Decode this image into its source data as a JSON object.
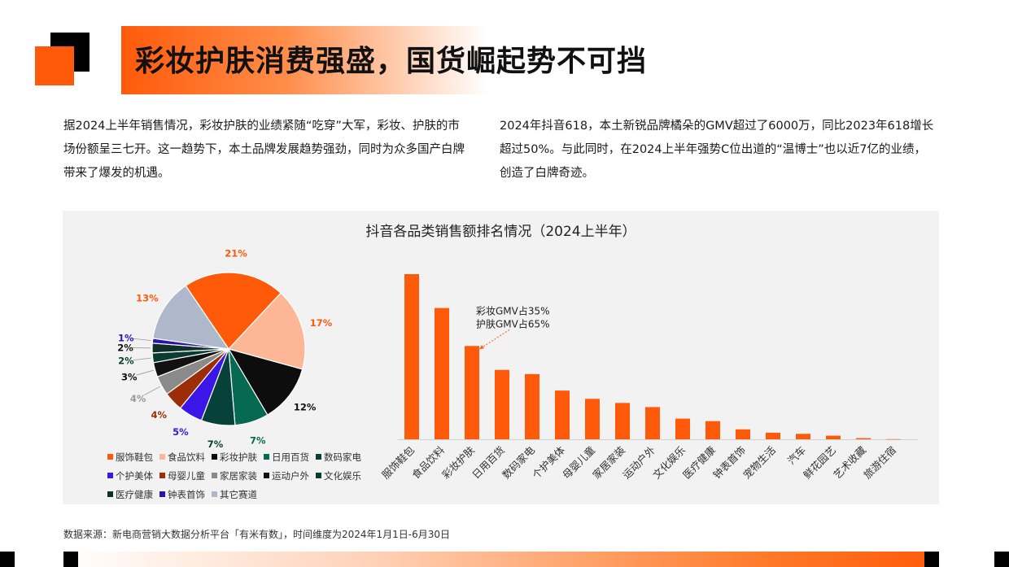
{
  "header": {
    "title": "彩妆护肤消费强盛，国货崛起势不可挡"
  },
  "paragraphs": {
    "left": "据2024上半年销售情况，彩妆护肤的业绩紧随“吃穿”大军，彩妆、护肤的市场份额呈三七开。这一趋势下，本土品牌发展趋势强劲，同时为众多国产白牌带来了爆发的机遇。",
    "right": "2024年抖音618，本土新锐品牌橘朵的GMV超过了6000万，同比2023年618增长超过50%。与此同时，在2024上半年强势C位出道的“温博士”也以近7亿的业绩，创造了白牌奇迹。"
  },
  "source": "数据来源：新电商营销大数据分析平台「有米有数」，时间维度为2024年1月1日-6月30日",
  "colors": {
    "accent": "#ff5a0a"
  },
  "chart_data": [
    {
      "type": "pie",
      "title": "抖音各品类销售额排名情况（2024上半年）",
      "legend_position": "bottom",
      "slices": [
        {
          "name": "服饰鞋包",
          "value": 21,
          "label": "21%",
          "color": "#ff5a0a",
          "label_color": "#ff5a0a"
        },
        {
          "name": "食品饮料",
          "value": 17,
          "label": "17%",
          "color": "#fdb797",
          "label_color": "#ff5a0a"
        },
        {
          "name": "彩妆护肤",
          "value": 12,
          "label": "12%",
          "color": "#0d0d0d",
          "label_color": "#111111"
        },
        {
          "name": "日用百货",
          "value": 7,
          "label": "7%",
          "color": "#066a52",
          "label_color": "#066a52"
        },
        {
          "name": "数码家电",
          "value": 7,
          "label": "7%",
          "color": "#06423a",
          "label_color": "#06423a"
        },
        {
          "name": "个护美体",
          "value": 5,
          "label": "5%",
          "color": "#3a17e6",
          "label_color": "#3a17e6"
        },
        {
          "name": "母婴儿童",
          "value": 4,
          "label": "4%",
          "color": "#9c2d06",
          "label_color": "#9c2d06"
        },
        {
          "name": "家居家装",
          "value": 4,
          "label": "4%",
          "color": "#8a8a8a",
          "label_color": "#999999"
        },
        {
          "name": "运动户外",
          "value": 3,
          "label": "3%",
          "color": "#111111",
          "label_color": "#111111"
        },
        {
          "name": "文化娱乐",
          "value": 2,
          "label": "2%",
          "color": "#0a3c33",
          "label_color": "#0a3c33"
        },
        {
          "name": "医疗健康",
          "value": 2,
          "label": "2%",
          "color": "#0f2f28",
          "label_color": "#111111"
        },
        {
          "name": "钟表首饰",
          "value": 1,
          "label": "1%",
          "color": "#2a14b0",
          "label_color": "#2a14b0"
        },
        {
          "name": "其它赛道",
          "value": 13,
          "label": "13%",
          "color": "#adb9ca",
          "label_color": "#ff5a0a"
        }
      ]
    },
    {
      "type": "bar",
      "categories": [
        "服饰鞋包",
        "食品饮料",
        "彩妆护肤",
        "日用百货",
        "数码家电",
        "个护美体",
        "母婴儿童",
        "家居家装",
        "运动户外",
        "文化娱乐",
        "医疗健康",
        "钟表首饰",
        "宠物生活",
        "汽车",
        "鲜花园艺",
        "艺术收藏",
        "旅游住宿"
      ],
      "values": [
        100,
        79.5,
        56.5,
        42,
        39.5,
        29.5,
        24.5,
        22,
        19.5,
        12.5,
        11,
        6,
        4,
        3.3,
        2.2,
        0.7,
        0.1
      ],
      "ylim": [
        0,
        100
      ],
      "bar_color": "#ff5a0a",
      "annotation": {
        "category": "彩妆护肤",
        "lines": [
          "彩妆GMV占35%",
          "护肤GMV占65%"
        ]
      }
    }
  ]
}
